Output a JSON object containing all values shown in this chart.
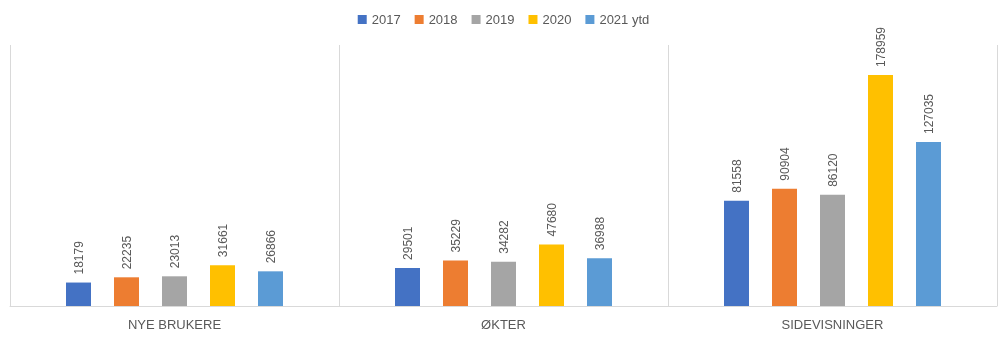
{
  "chart_data": {
    "type": "bar",
    "categories": [
      "NYE BRUKERE",
      "ØKTER",
      "SIDEVISNINGER"
    ],
    "series": [
      {
        "name": "2017",
        "color": "#4472c4",
        "values": [
          18179,
          29501,
          81558
        ]
      },
      {
        "name": "2018",
        "color": "#ed7d31",
        "values": [
          22235,
          35229,
          90904
        ]
      },
      {
        "name": "2019",
        "color": "#a5a5a5",
        "values": [
          23013,
          34282,
          86120
        ]
      },
      {
        "name": "2020",
        "color": "#ffc000",
        "values": [
          31661,
          47680,
          178959
        ]
      },
      {
        "name": "2021 ytd",
        "color": "#5b9bd5",
        "values": [
          26866,
          36988,
          127035
        ]
      }
    ],
    "data_labels": true,
    "legend": "top",
    "grid": "x",
    "tick_labels": "x"
  }
}
